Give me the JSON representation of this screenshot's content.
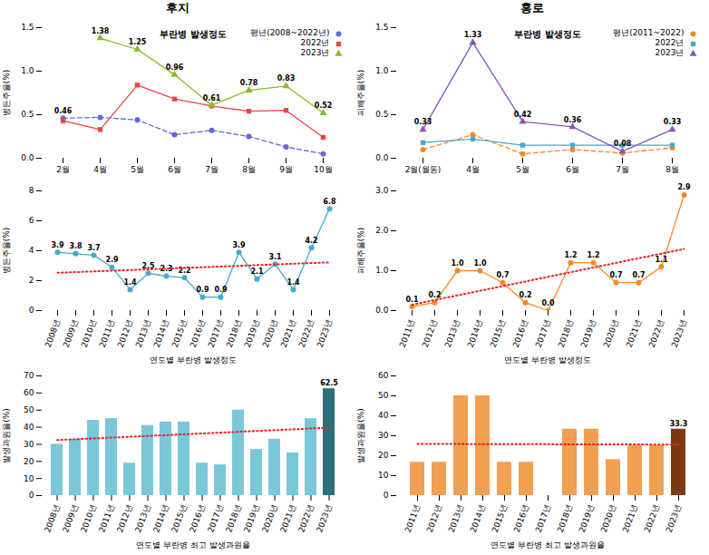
{
  "chart_data": [
    {
      "type": "line",
      "title": "후지",
      "categories": [
        "2월",
        "4월",
        "5월",
        "6월",
        "7월",
        "8월",
        "9월",
        "10월"
      ],
      "series": [
        {
          "name": "평년(2008~2022년)",
          "color": "#6666DD",
          "line_style": "dashed",
          "marker": "circle",
          "values": [
            0.46,
            0.47,
            0.44,
            0.27,
            0.32,
            0.25,
            0.13,
            0.05
          ],
          "value_labels": [
            "0.46",
            null,
            null,
            null,
            null,
            null,
            null,
            null
          ]
        },
        {
          "name": "2022년",
          "color": "#EE4444",
          "line_style": "solid",
          "marker": "square",
          "values": [
            0.43,
            0.33,
            0.84,
            0.68,
            0.6,
            0.54,
            0.55,
            0.24
          ]
        },
        {
          "name": "2023년",
          "color": "#88BB22",
          "line_style": "solid",
          "marker": "triangle",
          "values": [
            null,
            1.38,
            1.25,
            0.96,
            0.61,
            0.78,
            0.83,
            0.52
          ],
          "value_labels": [
            null,
            "1.38",
            "1.25",
            "0.96",
            "0.61",
            "0.78",
            "0.83",
            "0.52"
          ]
        }
      ],
      "ylabel": "병든주율(%)",
      "annotations": [
        "부란병 발생정도"
      ],
      "ylim": [
        0,
        1.5
      ],
      "yticks": [
        {
          "value": 0,
          "label": "0.0"
        },
        0.5,
        {
          "value": 1,
          "label": "1.0"
        },
        1.5
      ],
      "legend": "upper right",
      "grid": false
    },
    {
      "type": "line",
      "title": "홍로",
      "categories": [
        "2월(월동)",
        "4월",
        "5월",
        "6월",
        "7월",
        "8월"
      ],
      "series": [
        {
          "name": "평년(2011~2022)",
          "color": "#FF8822",
          "line_style": "dashed",
          "marker": "circle",
          "values": [
            0.1,
            0.27,
            0.05,
            0.1,
            0.06,
            0.12
          ]
        },
        {
          "name": "2022년",
          "color": "#44AACC",
          "line_style": "solid",
          "marker": "square",
          "values": [
            0.18,
            0.22,
            0.15,
            0.15,
            0.15,
            0.15
          ]
        },
        {
          "name": "2023년",
          "color": "#8855BB",
          "line_style": "solid",
          "marker": "triangle",
          "values": [
            0.33,
            1.33,
            0.42,
            0.36,
            0.08,
            0.33
          ],
          "value_labels": [
            "0.33",
            "1.33",
            "0.42",
            "0.36",
            "0.08",
            "0.33"
          ]
        }
      ],
      "ylabel": "피해주율(%)",
      "annotations": [
        "부란병 발생정도"
      ],
      "ylim": [
        0,
        1.5
      ],
      "yticks": [
        {
          "value": 0,
          "label": "0.0"
        },
        0.5,
        {
          "value": 1,
          "label": "1.0"
        },
        1.5
      ],
      "legend": "upper right",
      "grid": false
    },
    {
      "type": "line",
      "categories": [
        "2008년",
        "2009년",
        "2010년",
        "2011년",
        "2012년",
        "2013년",
        "2014년",
        "2015년",
        "2016년",
        "2017년",
        "2018년",
        "2019년",
        "2020년",
        "2021년",
        "2022년",
        "2023년"
      ],
      "series": [
        {
          "color": "#44AACC",
          "line_style": "solid",
          "marker": "circle",
          "values": [
            3.9,
            3.8,
            3.7,
            2.9,
            1.4,
            2.5,
            2.3,
            2.2,
            0.9,
            0.9,
            3.9,
            2.1,
            3.1,
            1.4,
            4.2,
            6.8
          ],
          "value_labels": [
            "3.9",
            "3.8",
            "3.7",
            "2.9",
            "1.4",
            "2.5",
            "2.3",
            "2.2",
            "0.9",
            "0.9",
            "3.9",
            "2.1",
            "3.1",
            "1.4",
            "4.2",
            "6.8"
          ]
        },
        {
          "color": "#EE2222",
          "line_style": "dotted",
          "values": [
            2.5265,
            2.5729,
            2.6194,
            2.6659,
            2.7124,
            2.7588,
            2.8053,
            2.8518,
            2.8982,
            2.9447,
            2.9912,
            3.0376,
            3.0841,
            3.1306,
            3.1771,
            3.2235
          ]
        }
      ],
      "xlabel": "연도별 부란병 발생정도",
      "ylabel": "병든주율(%)",
      "ylim": [
        0,
        8
      ],
      "yticks": [
        0,
        2,
        4,
        6,
        8
      ],
      "grid": false
    },
    {
      "type": "line",
      "categories": [
        "2011년",
        "2012년",
        "2013년",
        "2014년",
        "2015년",
        "2016년",
        "2017년",
        "2018년",
        "2019년",
        "2020년",
        "2021년",
        "2022년",
        "2023년"
      ],
      "series": [
        {
          "color": "#FF8822",
          "line_style": "solid",
          "marker": "circle",
          "values": [
            0.1,
            0.2,
            1.0,
            1.0,
            0.7,
            0.2,
            0.0,
            1.2,
            1.2,
            0.7,
            0.7,
            1.1,
            2.9
          ],
          "value_labels": [
            "0.1",
            "0.2",
            "1.0",
            "1.0",
            "0.7",
            "0.2",
            "0.0",
            "1.2",
            "1.2",
            "0.7",
            "0.7",
            "1.1",
            "2.9"
          ]
        },
        {
          "color": "#EE2222",
          "line_style": "dotted",
          "values": [
            0.1473,
            0.2637,
            0.3802,
            0.4967,
            0.6132,
            0.7297,
            0.8462,
            0.9626,
            1.0791,
            1.1956,
            1.3121,
            1.4286,
            1.5451
          ]
        }
      ],
      "xlabel": "연도별 부란병 발생정도",
      "ylabel": "피해주율(%)",
      "ylim": [
        0,
        3
      ],
      "yticks": [
        {
          "value": 0,
          "label": "0.0"
        },
        {
          "value": 1,
          "label": "1.0"
        },
        {
          "value": 2,
          "label": "2.0"
        },
        {
          "value": 3,
          "label": "3.0"
        }
      ],
      "grid": false
    },
    {
      "type": "bar",
      "categories": [
        "2008년",
        "2009년",
        "2010년",
        "2011년",
        "2012년",
        "2013년",
        "2014년",
        "2015년",
        "2016년",
        "2017년",
        "2018년",
        "2019년",
        "2020년",
        "2021년",
        "2022년",
        "2023년"
      ],
      "series": [
        {
          "type": "bar",
          "colors": [
            "#78C8D8",
            "#78C8D8",
            "#78C8D8",
            "#78C8D8",
            "#78C8D8",
            "#78C8D8",
            "#78C8D8",
            "#78C8D8",
            "#78C8D8",
            "#78C8D8",
            "#78C8D8",
            "#78C8D8",
            "#78C8D8",
            "#78C8D8",
            "#78C8D8",
            "#2F6E7A"
          ],
          "values": [
            30,
            33,
            44,
            45,
            19,
            41,
            43,
            43,
            19,
            18,
            50,
            27,
            33,
            25,
            45,
            62.5
          ],
          "value_labels": [
            null,
            null,
            null,
            null,
            null,
            null,
            null,
            null,
            null,
            null,
            null,
            null,
            null,
            null,
            null,
            "62.5"
          ]
        },
        {
          "type": "line",
          "color": "#EE2222",
          "line_style": "dotted",
          "values": [
            32.4706,
            32.9537,
            33.4368,
            33.9199,
            34.4029,
            34.886,
            35.3691,
            35.8522,
            36.3353,
            36.8184,
            37.3015,
            37.7846,
            38.2676,
            38.7507,
            39.2338,
            39.7169
          ]
        }
      ],
      "xlabel": "연도별 부란병 최고 발생과원율",
      "ylabel": "발생과원율(%)",
      "ylim": [
        0,
        70
      ],
      "yticks": [
        0,
        10,
        20,
        30,
        40,
        50,
        60,
        70
      ],
      "grid": false
    },
    {
      "type": "bar",
      "categories": [
        "2011년",
        "2012년",
        "2013년",
        "2014년",
        "2015년",
        "2016년",
        "2017년",
        "2018년",
        "2019년",
        "2020년",
        "2021년",
        "2022년",
        "2023년"
      ],
      "series": [
        {
          "type": "bar",
          "colors": [
            "#F0A050",
            "#F0A050",
            "#F0A050",
            "#F0A050",
            "#F0A050",
            "#F0A050",
            "#F0A050",
            "#F0A050",
            "#F0A050",
            "#F0A050",
            "#F0A050",
            "#F0A050",
            "#7B3A10"
          ],
          "values": [
            16.7,
            16.7,
            50,
            50,
            16.7,
            16.7,
            0,
            33.3,
            33.3,
            18.0,
            25,
            25,
            33.3
          ],
          "value_labels": [
            null,
            null,
            null,
            null,
            null,
            null,
            null,
            null,
            null,
            null,
            null,
            null,
            "33.3"
          ]
        },
        {
          "type": "line",
          "color": "#EE2222",
          "line_style": "dotted",
          "values": [
            25.9143,
            25.8863,
            25.8582,
            25.8302,
            25.8022,
            25.7742,
            25.7462,
            25.7181,
            25.6901,
            25.6621,
            25.6341,
            25.606,
            25.578
          ]
        }
      ],
      "xlabel": "연도별 부란병 최고 발생과원율",
      "ylabel": "발생과원율(%)",
      "ylim": [
        0,
        60
      ],
      "yticks": [
        0,
        10,
        20,
        30,
        40,
        50,
        60
      ],
      "grid": false
    }
  ]
}
